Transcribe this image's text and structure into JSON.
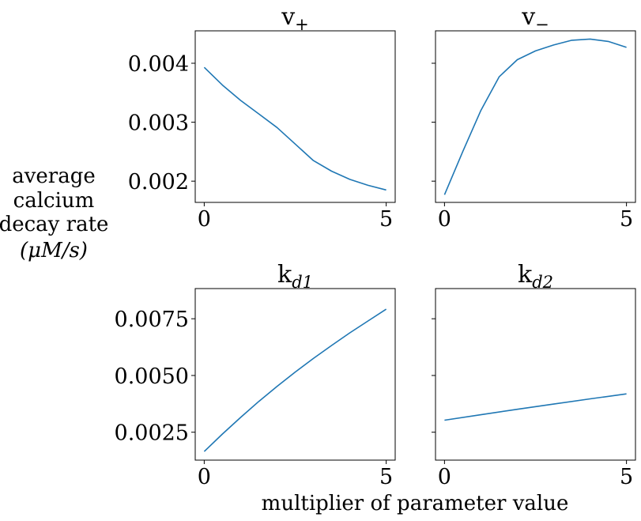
{
  "figure": {
    "ylabel_lines": [
      "average",
      "calcium",
      "decay rate",
      "(μM/s)"
    ],
    "xlabel": "multiplier of parameter value"
  },
  "colors": {
    "line": "#1f77b4"
  },
  "chart_data": [
    {
      "type": "line",
      "title_base": "v",
      "title_sub": "+",
      "xlim": [
        0,
        5
      ],
      "ylim": [
        0.00164,
        0.00455
      ],
      "xticks": [
        0,
        5
      ],
      "xtick_labels": [
        "0",
        "5"
      ],
      "yticks": [
        0.002,
        0.003,
        0.004
      ],
      "ytick_labels": [
        "0.002",
        "0.003",
        "0.004"
      ],
      "show_ytick_labels": true,
      "series": [
        {
          "x": [
            0,
            0.5,
            1,
            1.5,
            2,
            2.5,
            3,
            3.5,
            4,
            4.5,
            5
          ],
          "y": [
            0.00393,
            0.00363,
            0.00337,
            0.00314,
            0.00291,
            0.00263,
            0.00235,
            0.00217,
            0.00203,
            0.00193,
            0.00185
          ]
        }
      ]
    },
    {
      "type": "line",
      "title_base": "v",
      "title_sub": "−",
      "xlim": [
        0,
        5
      ],
      "ylim": [
        0.00164,
        0.00455
      ],
      "xticks": [
        0,
        5
      ],
      "xtick_labels": [
        "0",
        "5"
      ],
      "yticks": [
        0.002,
        0.003,
        0.004
      ],
      "ytick_labels": [
        "0.002",
        "0.003",
        "0.004"
      ],
      "show_ytick_labels": false,
      "series": [
        {
          "x": [
            0,
            0.5,
            1,
            1.5,
            2,
            2.5,
            3,
            3.5,
            4,
            4.5,
            5
          ],
          "y": [
            0.00177,
            0.0025,
            0.0032,
            0.00377,
            0.00406,
            0.00421,
            0.00431,
            0.00439,
            0.00441,
            0.00437,
            0.00427
          ]
        }
      ]
    },
    {
      "type": "line",
      "title_base": "k",
      "title_sub": "d1",
      "xlim": [
        0,
        5
      ],
      "ylim": [
        0.00127,
        0.00883
      ],
      "xticks": [
        0,
        5
      ],
      "xtick_labels": [
        "0",
        "5"
      ],
      "yticks": [
        0.0025,
        0.005,
        0.0075
      ],
      "ytick_labels": [
        "0.0025",
        "0.0050",
        "0.0075"
      ],
      "show_ytick_labels": true,
      "series": [
        {
          "x": [
            0,
            0.5,
            1,
            1.5,
            2,
            2.5,
            3,
            3.5,
            4,
            4.5,
            5
          ],
          "y": [
            0.00165,
            0.00242,
            0.00315,
            0.00386,
            0.00452,
            0.00515,
            0.00575,
            0.00632,
            0.00688,
            0.0074,
            0.00792
          ]
        }
      ]
    },
    {
      "type": "line",
      "title_base": "k",
      "title_sub": "d2",
      "xlim": [
        0,
        5
      ],
      "ylim": [
        0.00127,
        0.00883
      ],
      "xticks": [
        0,
        5
      ],
      "xtick_labels": [
        "0",
        "5"
      ],
      "yticks": [
        0.0025,
        0.005,
        0.0075
      ],
      "ytick_labels": [
        "0.0025",
        "0.0050",
        "0.0075"
      ],
      "show_ytick_labels": false,
      "series": [
        {
          "x": [
            0,
            1,
            2,
            3,
            4,
            5
          ],
          "y": [
            0.00303,
            0.00327,
            0.00351,
            0.00374,
            0.00397,
            0.00419
          ]
        }
      ]
    }
  ]
}
